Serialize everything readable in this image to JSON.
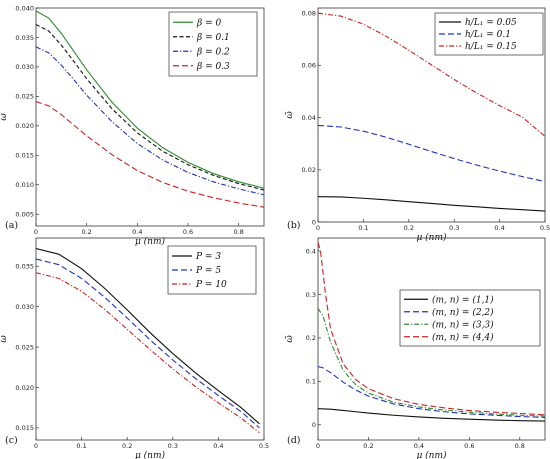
{
  "chart_data": [
    {
      "type": "line",
      "panel_label": "(a)",
      "xlabel": "μ (nm)",
      "ylabel": "ω̄",
      "xlim": [
        0,
        0.9
      ],
      "ylim": [
        0.003,
        0.04
      ],
      "xticks": [
        0,
        0.2,
        0.4,
        0.6,
        0.8
      ],
      "xtick_labels": [
        "0",
        "0.2",
        "0.4",
        "0.6",
        "0.8"
      ],
      "yticks": [
        0.005,
        0.01,
        0.015,
        0.02,
        0.025,
        0.03,
        0.035,
        0.04
      ],
      "ytick_labels": [
        "0.005",
        "0.010",
        "0.015",
        "0.020",
        "0.025",
        "0.030",
        "0.035",
        "0.040"
      ],
      "legend_position": "top-right",
      "grid": false,
      "series": [
        {
          "name": "β = 0",
          "color": "#2e8b2e",
          "dash": "solid",
          "x": [
            0,
            0.05,
            0.1,
            0.15,
            0.2,
            0.3,
            0.4,
            0.5,
            0.6,
            0.7,
            0.8,
            0.9
          ],
          "values": [
            0.0395,
            0.0383,
            0.0357,
            0.0326,
            0.0295,
            0.024,
            0.0196,
            0.0163,
            0.0138,
            0.0119,
            0.0105,
            0.0094
          ]
        },
        {
          "name": "β = 0.1",
          "color": "#111111",
          "dash": "dash",
          "x": [
            0,
            0.05,
            0.1,
            0.15,
            0.2,
            0.3,
            0.4,
            0.5,
            0.6,
            0.7,
            0.8,
            0.9
          ],
          "values": [
            0.0372,
            0.0361,
            0.0337,
            0.0309,
            0.028,
            0.0229,
            0.0188,
            0.0157,
            0.0134,
            0.0116,
            0.0102,
            0.0091
          ]
        },
        {
          "name": "β = 0.2",
          "color": "#2233bb",
          "dash": "dashdot",
          "x": [
            0,
            0.05,
            0.1,
            0.15,
            0.2,
            0.3,
            0.4,
            0.5,
            0.6,
            0.7,
            0.8,
            0.9
          ],
          "values": [
            0.0334,
            0.0324,
            0.0303,
            0.0278,
            0.0252,
            0.0207,
            0.017,
            0.0142,
            0.0121,
            0.0105,
            0.0093,
            0.0083
          ]
        },
        {
          "name": "β = 0.3",
          "color": "#cc2222",
          "dash": "longdash",
          "x": [
            0,
            0.05,
            0.1,
            0.15,
            0.2,
            0.3,
            0.4,
            0.5,
            0.6,
            0.7,
            0.8,
            0.9
          ],
          "values": [
            0.0241,
            0.0234,
            0.0219,
            0.0201,
            0.0183,
            0.0151,
            0.0124,
            0.0104,
            0.0089,
            0.0078,
            0.0069,
            0.0062
          ]
        }
      ]
    },
    {
      "type": "line",
      "panel_label": "(b)",
      "xlabel": "μ (nm)",
      "ylabel": "ω̄",
      "xlim": [
        0,
        0.5
      ],
      "ylim": [
        0,
        0.082
      ],
      "xticks": [
        0,
        0.1,
        0.2,
        0.3,
        0.4,
        0.5
      ],
      "xtick_labels": [
        "0",
        "0.1",
        "0.2",
        "0.3",
        "0.4",
        "0.5"
      ],
      "yticks": [
        0,
        0.02,
        0.04,
        0.06,
        0.08
      ],
      "ytick_labels": [
        "0",
        "0.02",
        "0.04",
        "0.06",
        "0.08"
      ],
      "legend_position": "top-right",
      "grid": false,
      "series": [
        {
          "name": "h/L₁ = 0.05",
          "color": "#111111",
          "dash": "solid",
          "x": [
            0,
            0.05,
            0.1,
            0.15,
            0.2,
            0.25,
            0.3,
            0.35,
            0.4,
            0.45,
            0.5
          ],
          "values": [
            0.0097,
            0.0096,
            0.0091,
            0.0085,
            0.0078,
            0.0071,
            0.0064,
            0.0058,
            0.0052,
            0.0047,
            0.0042
          ]
        },
        {
          "name": "h/L₁ = 0.1",
          "color": "#2233bb",
          "dash": "longdash",
          "x": [
            0,
            0.05,
            0.1,
            0.15,
            0.2,
            0.25,
            0.3,
            0.35,
            0.4,
            0.45,
            0.5
          ],
          "values": [
            0.037,
            0.0364,
            0.0348,
            0.0325,
            0.0298,
            0.027,
            0.0243,
            0.0218,
            0.0195,
            0.0174,
            0.0155
          ]
        },
        {
          "name": "h/L₁ = 0.15",
          "color": "#cc2222",
          "dash": "dashdot",
          "x": [
            0,
            0.05,
            0.1,
            0.15,
            0.2,
            0.25,
            0.3,
            0.35,
            0.4,
            0.45,
            0.5
          ],
          "values": [
            0.08,
            0.0789,
            0.0758,
            0.0712,
            0.0658,
            0.0602,
            0.0546,
            0.0494,
            0.0446,
            0.0402,
            0.0328
          ]
        }
      ]
    },
    {
      "type": "line",
      "panel_label": "(c)",
      "xlabel": "μ (nm)",
      "ylabel": "ω̄",
      "xlim": [
        0,
        0.5
      ],
      "ylim": [
        0.0135,
        0.0385
      ],
      "xticks": [
        0,
        0.1,
        0.2,
        0.3,
        0.4,
        0.5
      ],
      "xtick_labels": [
        "0",
        "0.1",
        "0.2",
        "0.3",
        "0.4",
        "0.5"
      ],
      "yticks": [
        0.015,
        0.02,
        0.025,
        0.03,
        0.035
      ],
      "ytick_labels": [
        "0.015",
        "0.020",
        "0.025",
        "0.030",
        "0.035"
      ],
      "legend_position": "top-right",
      "grid": false,
      "series": [
        {
          "name": "P = 3",
          "color": "#111111",
          "dash": "solid",
          "x": [
            0,
            0.05,
            0.1,
            0.15,
            0.2,
            0.25,
            0.3,
            0.35,
            0.4,
            0.45,
            0.49
          ],
          "values": [
            0.0372,
            0.0365,
            0.0347,
            0.0323,
            0.0296,
            0.0268,
            0.0242,
            0.0218,
            0.0196,
            0.0175,
            0.0155
          ]
        },
        {
          "name": "P = 5",
          "color": "#2233bb",
          "dash": "longdash",
          "x": [
            0,
            0.05,
            0.1,
            0.15,
            0.2,
            0.25,
            0.3,
            0.35,
            0.4,
            0.45,
            0.49
          ],
          "values": [
            0.0359,
            0.0352,
            0.0335,
            0.0312,
            0.0286,
            0.0259,
            0.0234,
            0.0211,
            0.019,
            0.017,
            0.015
          ]
        },
        {
          "name": "P = 10",
          "color": "#cc2222",
          "dash": "dashdot",
          "x": [
            0,
            0.05,
            0.1,
            0.15,
            0.2,
            0.25,
            0.3,
            0.35,
            0.4,
            0.45,
            0.49
          ],
          "values": [
            0.0342,
            0.0335,
            0.0319,
            0.0297,
            0.0272,
            0.0247,
            0.0223,
            0.0201,
            0.0181,
            0.0162,
            0.0144
          ]
        }
      ]
    },
    {
      "type": "line",
      "panel_label": "(d)",
      "xlabel": "μ (nm)",
      "ylabel": "ω̄",
      "xlim": [
        0,
        0.9
      ],
      "ylim": [
        -0.035,
        0.43
      ],
      "xticks": [
        0,
        0.2,
        0.4,
        0.6,
        0.8
      ],
      "xtick_labels": [
        "0",
        "0.2",
        "0.4",
        "0.6",
        "0.8"
      ],
      "yticks": [
        0,
        0.1,
        0.2,
        0.3,
        0.4
      ],
      "ytick_labels": [
        "0",
        "0.1",
        "0.2",
        "0.3",
        "0.4"
      ],
      "legend_position": "top-right",
      "grid": false,
      "series": [
        {
          "name": "(m, n) = (1,1)",
          "color": "#111111",
          "dash": "solid",
          "x": [
            0,
            0.05,
            0.1,
            0.15,
            0.2,
            0.3,
            0.4,
            0.5,
            0.6,
            0.7,
            0.8,
            0.9
          ],
          "values": [
            0.037,
            0.036,
            0.033,
            0.03,
            0.027,
            0.022,
            0.018,
            0.015,
            0.013,
            0.011,
            0.0095,
            0.0085
          ]
        },
        {
          "name": "(m, n) = (2,2)",
          "color": "#2233bb",
          "dash": "longdash",
          "x": [
            0,
            0.02,
            0.05,
            0.1,
            0.15,
            0.2,
            0.3,
            0.4,
            0.5,
            0.6,
            0.7,
            0.8,
            0.9
          ],
          "values": [
            0.134,
            0.131,
            0.12,
            0.098,
            0.08,
            0.066,
            0.048,
            0.037,
            0.03,
            0.025,
            0.022,
            0.019,
            0.017
          ]
        },
        {
          "name": "(m, n) = (3,3)",
          "color": "#2e8b2e",
          "dash": "dashdot",
          "x": [
            0,
            0.02,
            0.05,
            0.1,
            0.15,
            0.2,
            0.3,
            0.4,
            0.5,
            0.6,
            0.7,
            0.8,
            0.9
          ],
          "values": [
            0.268,
            0.25,
            0.19,
            0.125,
            0.092,
            0.073,
            0.052,
            0.041,
            0.034,
            0.029,
            0.025,
            0.022,
            0.02
          ]
        },
        {
          "name": "(m, n) = (4,4)",
          "color": "#cc2222",
          "dash": "longdash",
          "x": [
            0,
            0.01,
            0.03,
            0.05,
            0.1,
            0.15,
            0.2,
            0.3,
            0.4,
            0.5,
            0.6,
            0.7,
            0.8,
            0.9
          ],
          "values": [
            0.42,
            0.4,
            0.3,
            0.22,
            0.14,
            0.104,
            0.083,
            0.06,
            0.047,
            0.039,
            0.033,
            0.029,
            0.026,
            0.023
          ]
        }
      ]
    }
  ]
}
